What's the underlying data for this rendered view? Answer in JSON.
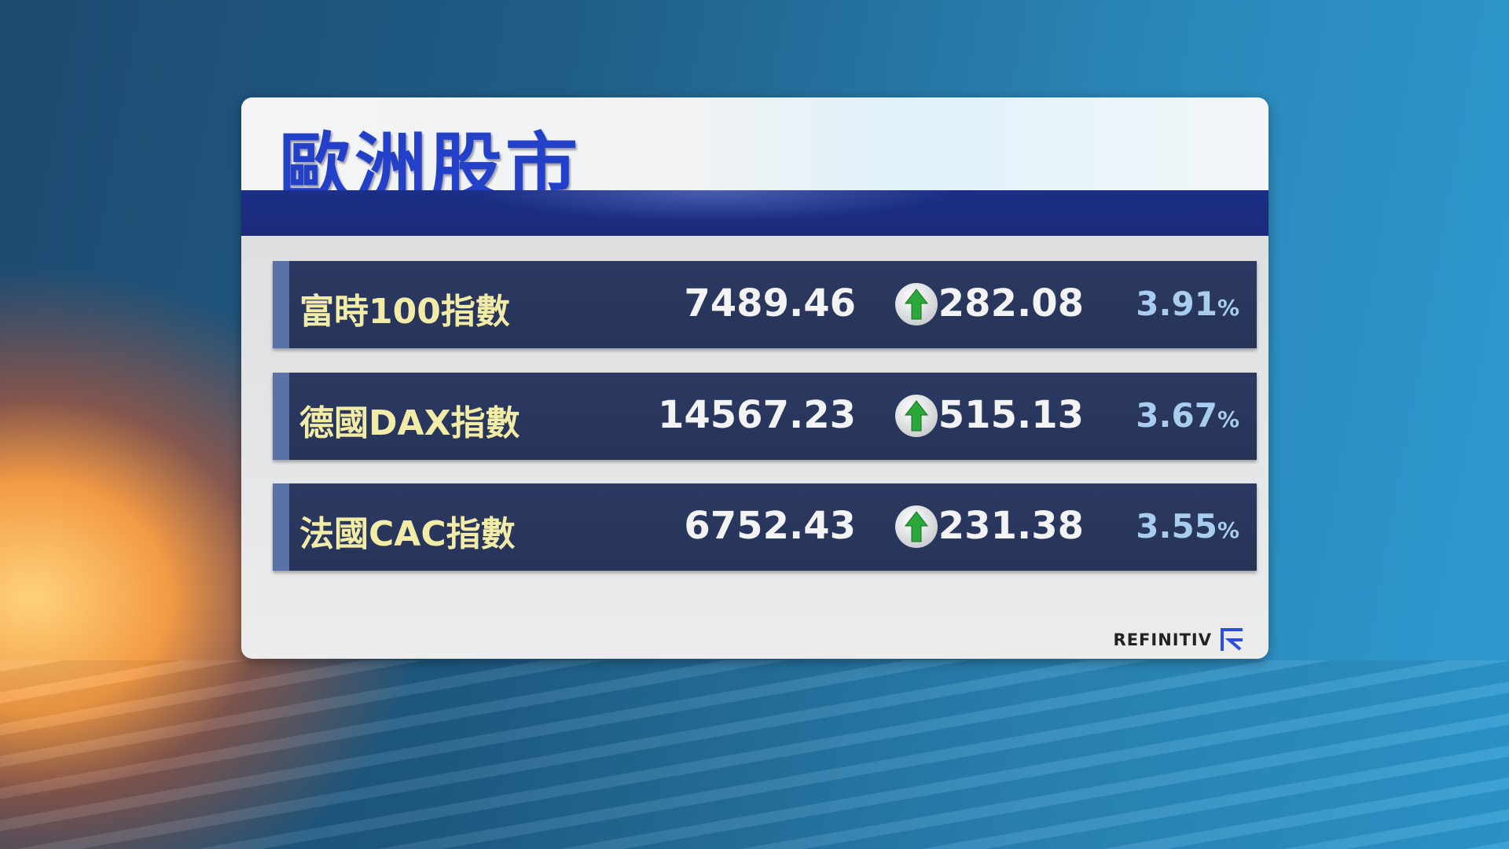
{
  "title": "歐洲股市",
  "rows": [
    {
      "name": "富時100指數",
      "value": "7489.46",
      "direction": "up",
      "change": "282.08",
      "percent": "3.91",
      "unit": "%"
    },
    {
      "name": "德國DAX指數",
      "value": "14567.23",
      "direction": "up",
      "change": "515.13",
      "percent": "3.67",
      "unit": "%"
    },
    {
      "name": "法國CAC指數",
      "value": "6752.43",
      "direction": "up",
      "change": "231.38",
      "percent": "3.55",
      "unit": "%"
    }
  ],
  "logo": "REFINITIV",
  "colors": {
    "title": "#2340c8",
    "row_bg": "#2a3860",
    "name": "#f3eca6",
    "percent": "#a9cdef",
    "arrow_up": "#2aa83a"
  }
}
